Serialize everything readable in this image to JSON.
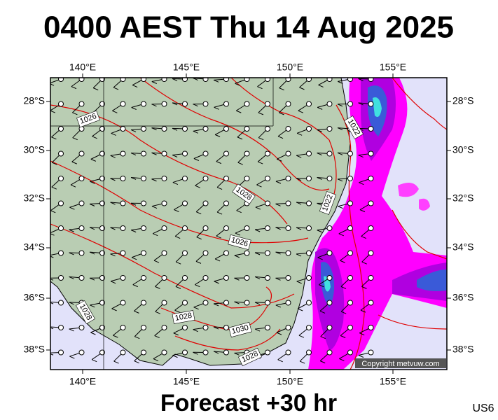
{
  "title": "0400 AEST Thu 14 Aug 2025",
  "lon_labels": [
    "140°E",
    "145°E",
    "150°E",
    "155°E"
  ],
  "lat_labels": [
    "28°S",
    "30°S",
    "32°S",
    "34°S",
    "36°S",
    "38°S"
  ],
  "contour_labels": [
    "1026",
    "1022",
    "1028",
    "1022",
    "1026",
    "1028",
    "1028",
    "1030",
    "1028"
  ],
  "copyright": "Copyright metvuw.com",
  "footer": "Forecast +30 hr",
  "code": "US6"
}
